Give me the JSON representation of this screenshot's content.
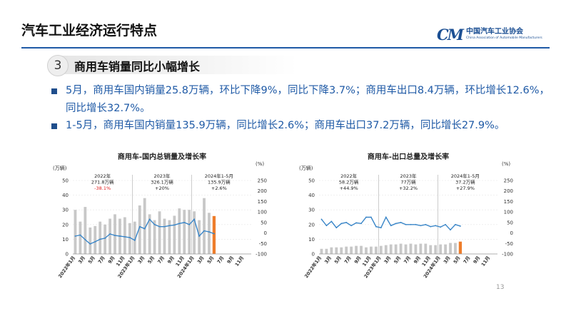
{
  "header": {
    "title": "汽车工业经济运行特点",
    "logo_mark": "CM",
    "logo_cn": "中国汽车工业协会",
    "logo_en": "China Association of Automobile Manufacturers"
  },
  "section": {
    "number": "3",
    "title": "商用车销量同比小幅增长"
  },
  "bullets": [
    "5月，商用车国内销量25.8万辆，环比下降9%，同比下降3.7%；商用车出口8.4万辆，环比增长12.6%，同比增长32.7%。",
    "1-5月，商用车国内销量135.9万辆，同比增长2.6%；商用车出口37.2万辆，同比增长27.9%。"
  ],
  "page_number": "13",
  "colors": {
    "bar": "#c8c8c8",
    "bar_highlight": "#ee7d2b",
    "line": "#3a86c8",
    "accent": "#1f5aa6",
    "negative_growth": "#e02020"
  },
  "chart_data": [
    {
      "type": "bar",
      "title": "商用车-国内总销量及增长率",
      "ylabel": "(万辆)",
      "y2label": "(%)",
      "ylim": [
        0,
        50
      ],
      "y2lim": [
        -100,
        250
      ],
      "yticks": [
        "0",
        "10",
        "20",
        "30",
        "40",
        "50"
      ],
      "y2ticks": [
        "-100",
        "-50",
        "0",
        "50",
        "100",
        "150",
        "200",
        "250"
      ],
      "x_labels": [
        "2022年1月",
        "3月",
        "5月",
        "7月",
        "9月",
        "11月",
        "2023年1月",
        "3月",
        "5月",
        "7月",
        "9月",
        "11月",
        "2024年1月",
        "3月",
        "5月",
        "7月",
        "9月",
        "11月"
      ],
      "annotations": [
        {
          "lines": [
            "2022年",
            "271.8万辆",
            "-38.1%"
          ],
          "negative_last": true
        },
        {
          "lines": [
            "2023年",
            "326.1万辆",
            "+20%"
          ],
          "negative_last": false
        },
        {
          "lines": [
            "2024年1-5月",
            "135.9万辆",
            "+2.6%"
          ],
          "negative_last": false
        }
      ],
      "bars": [
        30,
        22,
        32,
        18,
        19,
        22,
        20,
        24,
        27,
        24,
        25,
        21,
        22,
        33,
        38,
        27,
        23,
        29,
        24,
        23,
        26,
        31,
        30,
        30,
        29,
        23,
        38,
        28,
        25.8
      ],
      "highlight_index": 28,
      "growth": [
        -15,
        -10,
        -32,
        -52,
        -42,
        -30,
        -25,
        -5,
        -12,
        -15,
        -18,
        -22,
        -35,
        30,
        20,
        65,
        40,
        30,
        30,
        35,
        38,
        45,
        50,
        40,
        65,
        -15,
        10,
        5,
        -3.7
      ]
    },
    {
      "type": "bar",
      "title": "商用车-出口总量及增长率",
      "ylabel": "(万辆)",
      "y2label": "(%)",
      "ylim": [
        0,
        50
      ],
      "y2lim": [
        -100,
        250
      ],
      "yticks": [
        "0",
        "10",
        "20",
        "30",
        "40",
        "50"
      ],
      "y2ticks": [
        "-100",
        "-50",
        "0",
        "50",
        "100",
        "150",
        "200",
        "250"
      ],
      "x_labels": [
        "2022年1月",
        "3月",
        "5月",
        "7月",
        "9月",
        "11月",
        "2023年1月",
        "3月",
        "5月",
        "7月",
        "9月",
        "11月",
        "2024年1月",
        "3月",
        "5月",
        "7月",
        "9月",
        "11月"
      ],
      "annotations": [
        {
          "lines": [
            "2022年",
            "58.2万辆",
            "+44.9%"
          ],
          "negative_last": false
        },
        {
          "lines": [
            "2023年",
            "77万辆",
            "+32.2%"
          ],
          "negative_last": false
        },
        {
          "lines": [
            "2024年1-5月",
            "37.2万辆",
            "+27.9%"
          ],
          "negative_last": false
        }
      ],
      "bars": [
        3.5,
        3.5,
        4.5,
        4.5,
        4.5,
        5,
        5,
        5.5,
        5.5,
        4.5,
        5,
        5,
        5.5,
        6,
        6.5,
        6.5,
        7,
        6.5,
        7,
        6.5,
        7,
        7,
        6,
        6,
        6.5,
        6.5,
        7.5,
        7.5,
        8.4
      ],
      "highlight_index": 28,
      "growth": [
        65,
        35,
        55,
        25,
        45,
        50,
        35,
        48,
        45,
        75,
        75,
        30,
        25,
        75,
        35,
        45,
        50,
        40,
        40,
        40,
        35,
        40,
        30,
        35,
        28,
        40,
        15,
        40,
        32.7
      ]
    }
  ]
}
